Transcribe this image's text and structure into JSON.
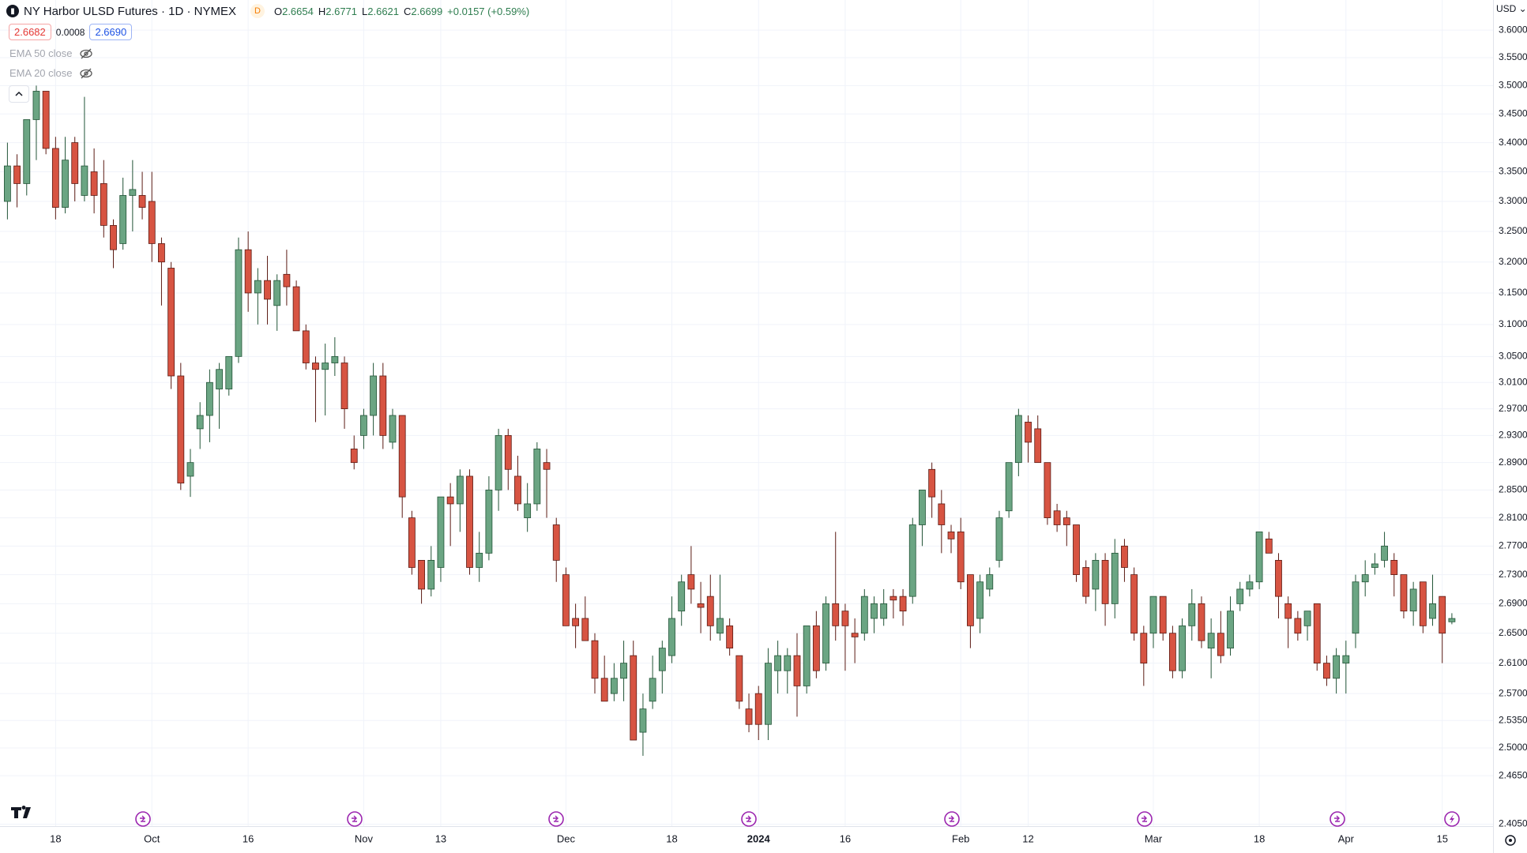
{
  "header": {
    "symbol": "NY Harbor ULSD Futures · 1D · NYMEX",
    "badge": "D",
    "ohlc": [
      {
        "key": "O",
        "value": "2.6654"
      },
      {
        "key": "H",
        "value": "2.6771"
      },
      {
        "key": "L",
        "value": "2.6621"
      },
      {
        "key": "C",
        "value": "2.6699"
      }
    ],
    "change": "+0.0157 (+0.59%)",
    "bid": "2.6682",
    "spread": "0.0008",
    "ask": "2.6690",
    "indicators": [
      "EMA 50 close",
      "EMA 20 close"
    ],
    "currency": "USD"
  },
  "chart_data": {
    "type": "candlestick",
    "log_scale": true,
    "grid": true,
    "up_color": "#6ba583",
    "up_border": "#225437",
    "down_color": "#d75442",
    "down_border": "#5b1a13",
    "categories": [
      null,
      null,
      null,
      null,
      null,
      "18",
      null,
      null,
      null,
      null,
      null,
      null,
      null,
      null,
      null,
      "Oct",
      null,
      null,
      null,
      null,
      null,
      null,
      null,
      null,
      null,
      "16",
      null,
      null,
      null,
      null,
      null,
      null,
      null,
      null,
      null,
      null,
      null,
      "Nov",
      null,
      null,
      null,
      null,
      null,
      null,
      null,
      "13",
      null,
      null,
      null,
      null,
      null,
      null,
      null,
      null,
      null,
      null,
      null,
      null,
      "Dec",
      null,
      null,
      null,
      null,
      null,
      null,
      null,
      null,
      null,
      null,
      "18",
      null,
      null,
      null,
      null,
      null,
      null,
      null,
      null,
      "2024",
      null,
      null,
      null,
      null,
      null,
      null,
      null,
      null,
      "16",
      null,
      null,
      null,
      null,
      null,
      null,
      null,
      null,
      null,
      null,
      null,
      "Feb",
      null,
      null,
      null,
      null,
      null,
      null,
      "12",
      null,
      null,
      null,
      null,
      null,
      null,
      null,
      null,
      null,
      null,
      null,
      null,
      "Mar",
      null,
      null,
      null,
      null,
      null,
      null,
      null,
      null,
      null,
      null,
      "18",
      null,
      null,
      null,
      null,
      null,
      null,
      null,
      null,
      "Apr",
      null,
      null,
      null,
      null,
      null,
      null,
      null,
      null,
      null,
      "15",
      null
    ],
    "open": [
      3.3,
      3.36,
      3.33,
      3.44,
      3.49,
      3.39,
      3.29,
      3.4,
      3.31,
      3.35,
      3.33,
      3.26,
      3.23,
      3.31,
      3.31,
      3.3,
      3.23,
      3.19,
      3.02,
      2.87,
      2.94,
      2.96,
      3.0,
      3.0,
      3.05,
      3.22,
      3.15,
      3.17,
      3.13,
      3.18,
      3.16,
      3.09,
      3.04,
      3.03,
      3.04,
      3.04,
      2.91,
      2.93,
      2.96,
      3.02,
      2.92,
      2.96,
      2.81,
      2.75,
      2.71,
      2.74,
      2.84,
      2.83,
      2.87,
      2.74,
      2.76,
      2.85,
      2.93,
      2.87,
      2.81,
      2.83,
      2.89,
      2.8,
      2.73,
      2.67,
      2.67,
      2.64,
      2.59,
      2.57,
      2.59,
      2.62,
      2.52,
      2.56,
      2.6,
      2.62,
      2.68,
      2.73,
      2.69,
      2.7,
      2.65,
      2.66,
      2.62,
      2.55,
      2.57,
      2.53,
      2.6,
      2.6,
      2.62,
      2.58,
      2.66,
      2.61,
      2.69,
      2.68,
      2.65,
      2.65,
      2.67,
      2.67,
      2.7,
      2.7,
      2.7,
      2.8,
      2.88,
      2.83,
      2.79,
      2.79,
      2.73,
      2.67,
      2.71,
      2.75,
      2.82,
      2.89,
      2.95,
      2.94,
      2.89,
      2.82,
      2.81,
      2.8,
      2.74,
      2.71,
      2.75,
      2.69,
      2.77,
      2.73,
      2.65,
      2.65,
      2.7,
      2.65,
      2.6,
      2.66,
      2.69,
      2.63,
      2.65,
      2.63,
      2.69,
      2.71,
      2.72,
      2.78,
      2.75,
      2.69,
      2.67,
      2.66,
      2.69,
      2.61,
      2.59,
      2.61,
      2.65,
      2.72,
      2.74,
      2.75,
      2.75,
      2.73,
      2.68,
      2.72,
      2.67,
      2.7,
      2.6654
    ],
    "high": [
      3.4,
      3.38,
      3.44,
      3.5,
      3.49,
      3.41,
      3.41,
      3.41,
      3.48,
      3.39,
      3.37,
      3.27,
      3.34,
      3.37,
      3.35,
      3.35,
      3.24,
      3.2,
      3.04,
      2.91,
      2.98,
      3.03,
      3.04,
      3.05,
      3.24,
      3.25,
      3.19,
      3.21,
      3.18,
      3.22,
      3.17,
      3.1,
      3.05,
      3.07,
      3.08,
      3.05,
      2.93,
      2.97,
      3.04,
      3.04,
      2.97,
      2.96,
      2.82,
      2.75,
      2.77,
      2.84,
      2.86,
      2.88,
      2.88,
      2.79,
      2.87,
      2.94,
      2.94,
      2.9,
      2.86,
      2.92,
      2.91,
      2.81,
      2.74,
      2.69,
      2.7,
      2.65,
      2.62,
      2.61,
      2.64,
      2.64,
      2.57,
      2.62,
      2.64,
      2.7,
      2.73,
      2.77,
      2.72,
      2.73,
      2.73,
      2.67,
      2.62,
      2.57,
      2.58,
      2.63,
      2.64,
      2.63,
      2.65,
      2.66,
      2.68,
      2.7,
      2.79,
      2.69,
      2.67,
      2.71,
      2.7,
      2.71,
      2.71,
      2.71,
      2.81,
      2.85,
      2.89,
      2.85,
      2.8,
      2.81,
      2.73,
      2.73,
      2.74,
      2.82,
      2.89,
      2.97,
      2.96,
      2.96,
      2.89,
      2.83,
      2.82,
      2.8,
      2.75,
      2.76,
      2.76,
      2.78,
      2.78,
      2.74,
      2.66,
      2.7,
      2.7,
      2.66,
      2.67,
      2.71,
      2.7,
      2.67,
      2.68,
      2.7,
      2.72,
      2.73,
      2.79,
      2.79,
      2.76,
      2.7,
      2.68,
      2.68,
      2.69,
      2.62,
      2.63,
      2.64,
      2.73,
      2.75,
      2.76,
      2.79,
      2.76,
      2.73,
      2.72,
      2.72,
      2.73,
      2.7,
      2.6771
    ],
    "low": [
      3.27,
      3.29,
      3.31,
      3.37,
      3.38,
      3.27,
      3.28,
      3.3,
      3.3,
      3.28,
      3.24,
      3.19,
      3.22,
      3.25,
      3.27,
      3.2,
      3.13,
      3.0,
      2.85,
      2.84,
      2.91,
      2.92,
      2.94,
      2.99,
      3.04,
      3.12,
      3.1,
      3.1,
      3.09,
      3.13,
      3.09,
      3.03,
      2.95,
      2.96,
      3.02,
      2.94,
      2.88,
      2.91,
      2.93,
      2.91,
      2.91,
      2.81,
      2.73,
      2.69,
      2.7,
      2.72,
      2.77,
      2.79,
      2.73,
      2.72,
      2.75,
      2.82,
      2.85,
      2.82,
      2.79,
      2.82,
      2.81,
      2.72,
      2.66,
      2.63,
      2.64,
      2.57,
      2.56,
      2.56,
      2.56,
      2.51,
      2.49,
      2.55,
      2.57,
      2.61,
      2.66,
      2.69,
      2.65,
      2.64,
      2.64,
      2.62,
      2.55,
      2.52,
      2.51,
      2.51,
      2.57,
      2.57,
      2.54,
      2.57,
      2.59,
      2.6,
      2.64,
      2.6,
      2.61,
      2.64,
      2.65,
      2.66,
      2.67,
      2.66,
      2.69,
      2.77,
      2.81,
      2.76,
      2.76,
      2.71,
      2.63,
      2.65,
      2.7,
      2.74,
      2.81,
      2.87,
      2.89,
      2.89,
      2.8,
      2.79,
      2.77,
      2.72,
      2.69,
      2.68,
      2.66,
      2.67,
      2.72,
      2.64,
      2.58,
      2.63,
      2.64,
      2.59,
      2.59,
      2.64,
      2.63,
      2.59,
      2.61,
      2.62,
      2.68,
      2.7,
      2.71,
      2.76,
      2.67,
      2.63,
      2.64,
      2.64,
      2.6,
      2.58,
      2.57,
      2.57,
      2.63,
      2.7,
      2.73,
      2.74,
      2.7,
      2.67,
      2.66,
      2.65,
      2.66,
      2.61,
      2.6621
    ],
    "close": [
      3.36,
      3.33,
      3.44,
      3.49,
      3.39,
      3.29,
      3.37,
      3.33,
      3.36,
      3.31,
      3.26,
      3.22,
      3.31,
      3.32,
      3.29,
      3.23,
      3.2,
      3.02,
      2.86,
      2.89,
      2.96,
      3.01,
      3.03,
      3.05,
      3.22,
      3.15,
      3.17,
      3.14,
      3.17,
      3.16,
      3.09,
      3.04,
      3.03,
      3.04,
      3.05,
      2.97,
      2.89,
      2.96,
      3.02,
      2.93,
      2.96,
      2.84,
      2.74,
      2.71,
      2.75,
      2.84,
      2.83,
      2.87,
      2.74,
      2.76,
      2.85,
      2.93,
      2.88,
      2.83,
      2.83,
      2.91,
      2.88,
      2.75,
      2.66,
      2.66,
      2.64,
      2.59,
      2.56,
      2.59,
      2.61,
      2.51,
      2.55,
      2.59,
      2.63,
      2.67,
      2.72,
      2.71,
      2.685,
      2.66,
      2.67,
      2.63,
      2.56,
      2.53,
      2.53,
      2.61,
      2.62,
      2.62,
      2.58,
      2.66,
      2.6,
      2.69,
      2.66,
      2.66,
      2.645,
      2.7,
      2.69,
      2.69,
      2.695,
      2.68,
      2.8,
      2.85,
      2.84,
      2.8,
      2.78,
      2.72,
      2.66,
      2.72,
      2.73,
      2.81,
      2.89,
      2.96,
      2.92,
      2.89,
      2.81,
      2.8,
      2.8,
      2.73,
      2.7,
      2.75,
      2.69,
      2.76,
      2.74,
      2.65,
      2.61,
      2.7,
      2.65,
      2.6,
      2.66,
      2.69,
      2.64,
      2.65,
      2.62,
      2.68,
      2.71,
      2.72,
      2.79,
      2.76,
      2.7,
      2.67,
      2.65,
      2.68,
      2.61,
      2.59,
      2.62,
      2.62,
      2.72,
      2.73,
      2.745,
      2.77,
      2.73,
      2.68,
      2.71,
      2.66,
      2.69,
      2.65,
      2.6699
    ],
    "ylim": [
      2.4026,
      3.6555
    ],
    "yticks": [
      {
        "value": 3.6,
        "label": "3.6000"
      },
      {
        "value": 3.55,
        "label": "3.5500"
      },
      {
        "value": 3.5,
        "label": "3.5000"
      },
      {
        "value": 3.45,
        "label": "3.4500"
      },
      {
        "value": 3.4,
        "label": "3.4000"
      },
      {
        "value": 3.35,
        "label": "3.3500"
      },
      {
        "value": 3.3,
        "label": "3.3000"
      },
      {
        "value": 3.25,
        "label": "3.2500"
      },
      {
        "value": 3.2,
        "label": "3.2000"
      },
      {
        "value": 3.15,
        "label": "3.1500"
      },
      {
        "value": 3.1,
        "label": "3.1000"
      },
      {
        "value": 3.05,
        "label": "3.0500"
      },
      {
        "value": 3.01,
        "label": "3.0100"
      },
      {
        "value": 2.97,
        "label": "2.9700"
      },
      {
        "value": 2.93,
        "label": "2.9300"
      },
      {
        "value": 2.89,
        "label": "2.8900"
      },
      {
        "value": 2.85,
        "label": "2.8500"
      },
      {
        "value": 2.81,
        "label": "2.8100"
      },
      {
        "value": 2.77,
        "label": "2.7700"
      },
      {
        "value": 2.73,
        "label": "2.7300"
      },
      {
        "value": 2.69,
        "label": "2.6900"
      },
      {
        "value": 2.65,
        "label": "2.6500"
      },
      {
        "value": 2.61,
        "label": "2.6100"
      },
      {
        "value": 2.57,
        "label": "2.5700"
      },
      {
        "value": 2.535,
        "label": "2.5350"
      },
      {
        "value": 2.5,
        "label": "2.5000"
      },
      {
        "value": 2.465,
        "label": "2.4650"
      },
      {
        "value": 2.405,
        "label": "2.4050"
      }
    ]
  }
}
